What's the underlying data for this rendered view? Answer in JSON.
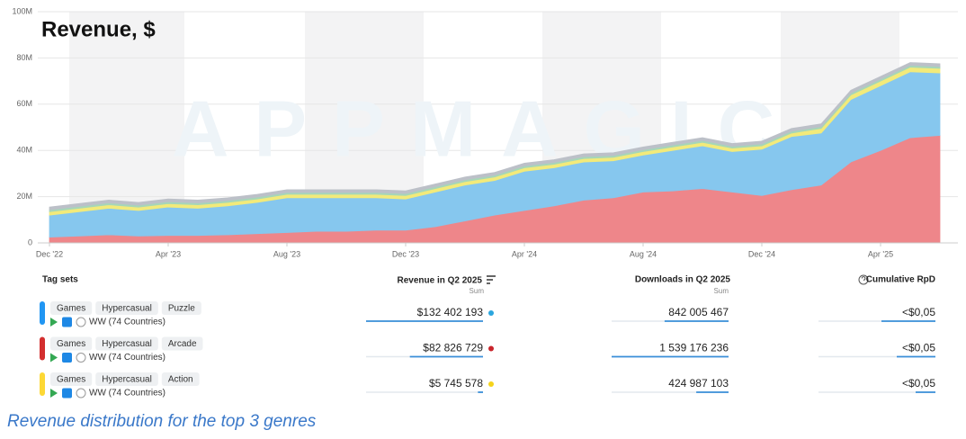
{
  "chart_data": {
    "type": "area",
    "title": "Revenue, $",
    "watermark": "APPMAGIC",
    "categories": [
      "Dec '22",
      null,
      null,
      null,
      "Apr '23",
      null,
      null,
      null,
      "Aug '23",
      null,
      null,
      null,
      "Dec '23",
      null,
      null,
      null,
      "Apr '24",
      null,
      null,
      null,
      "Aug '24",
      null,
      null,
      null,
      "Dec '24",
      null,
      null,
      null,
      "Apr '25",
      null,
      null
    ],
    "stacked": true,
    "series": [
      {
        "color": "#ee868a",
        "values": [
          2500000,
          3000000,
          3500000,
          3000000,
          3200000,
          3200000,
          3500000,
          4000000,
          4500000,
          5000000,
          5000000,
          5500000,
          5500000,
          7000000,
          9500000,
          12000000,
          14000000,
          16000000,
          18500000,
          19500000,
          22000000,
          22500000,
          23500000,
          22000000,
          20500000,
          23000000,
          25000000,
          35000000,
          40000000,
          45500000,
          46500000
        ]
      },
      {
        "color": "#86c7ee",
        "values": [
          9500000,
          10500000,
          11500000,
          11000000,
          12300000,
          11800000,
          12500000,
          13500000,
          15000000,
          14500000,
          14500000,
          14000000,
          13500000,
          15000000,
          15500000,
          15000000,
          17000000,
          16500000,
          16500000,
          16000000,
          16000000,
          17500000,
          18500000,
          17500000,
          20000000,
          23000000,
          22500000,
          27000000,
          28000000,
          28500000,
          27000000
        ]
      },
      {
        "color": "#f2ea7a",
        "values": [
          1500000,
          1500000,
          1500000,
          1500000,
          1500000,
          1500000,
          1500000,
          1500000,
          1500000,
          1500000,
          1500000,
          1500000,
          1500000,
          1500000,
          1500000,
          1500000,
          1500000,
          1500000,
          1500000,
          1500000,
          1500000,
          1500000,
          1500000,
          1500000,
          1500000,
          1500000,
          2000000,
          2000000,
          2000000,
          2000000,
          2000000
        ]
      },
      {
        "color": "#a6d6b8",
        "values": [
          800000,
          800000,
          800000,
          800000,
          800000,
          800000,
          800000,
          800000,
          800000,
          800000,
          800000,
          800000,
          800000,
          800000,
          800000,
          800000,
          800000,
          800000,
          800000,
          800000,
          800000,
          800000,
          800000,
          800000,
          800000,
          800000,
          800000,
          800000,
          800000,
          800000,
          800000
        ]
      },
      {
        "color": "#bcc0c8",
        "values": [
          1200000,
          1200000,
          1200000,
          1200000,
          1200000,
          1200000,
          1200000,
          1200000,
          1200000,
          1200000,
          1200000,
          1200000,
          1200000,
          1200000,
          1200000,
          1200000,
          1200000,
          1200000,
          1200000,
          1200000,
          1200000,
          1200000,
          1200000,
          1200000,
          1200000,
          1200000,
          1200000,
          1200000,
          1200000,
          1200000,
          1200000
        ]
      }
    ],
    "ylim": [
      0,
      100000000
    ],
    "yticks": [
      0,
      {
        "value": 20000000,
        "label": "20M"
      },
      {
        "value": 40000000,
        "label": "40M"
      },
      {
        "value": 60000000,
        "label": "60M"
      },
      {
        "value": 80000000,
        "label": "80M"
      },
      {
        "value": 100000000,
        "label": "100M"
      }
    ],
    "grid": true
  },
  "table": {
    "headers": {
      "tag_sets": "Tag sets",
      "revenue": "Revenue in Q2 2025",
      "revenue_agg": "Sum",
      "downloads": "Downloads in Q2 2025",
      "downloads_agg": "Sum",
      "rpd": "Cumulative RpD"
    },
    "rows": [
      {
        "color": "#2196f3",
        "dot_color": "#2ba6de",
        "tags": [
          "Games",
          "Hypercasual",
          "Puzzle"
        ],
        "region": "WW (74 Countries)",
        "revenue": {
          "value": 132402193,
          "label": "$132 402 193"
        },
        "downloads": {
          "value": 842005467,
          "label": "842 005 467"
        },
        "rpd": "<$0,05"
      },
      {
        "color": "#d32f2f",
        "dot_color": "#c9252c",
        "tags": [
          "Games",
          "Hypercasual",
          "Arcade"
        ],
        "region": "WW (74 Countries)",
        "revenue": {
          "value": 82826729,
          "label": "$82 826 729"
        },
        "downloads": {
          "value": 1539176236,
          "label": "1 539 176 236"
        },
        "rpd": "<$0,05"
      },
      {
        "color": "#fdd835",
        "dot_color": "#f5d31b",
        "tags": [
          "Games",
          "Hypercasual",
          "Action"
        ],
        "region": "WW (74 Countries)",
        "revenue": {
          "value": 5745578,
          "label": "$5 745 578"
        },
        "downloads": {
          "value": 424987103,
          "label": "424 987 103"
        },
        "rpd": "<$0,05"
      }
    ]
  },
  "caption": "Revenue distribution for the top 3 genres"
}
